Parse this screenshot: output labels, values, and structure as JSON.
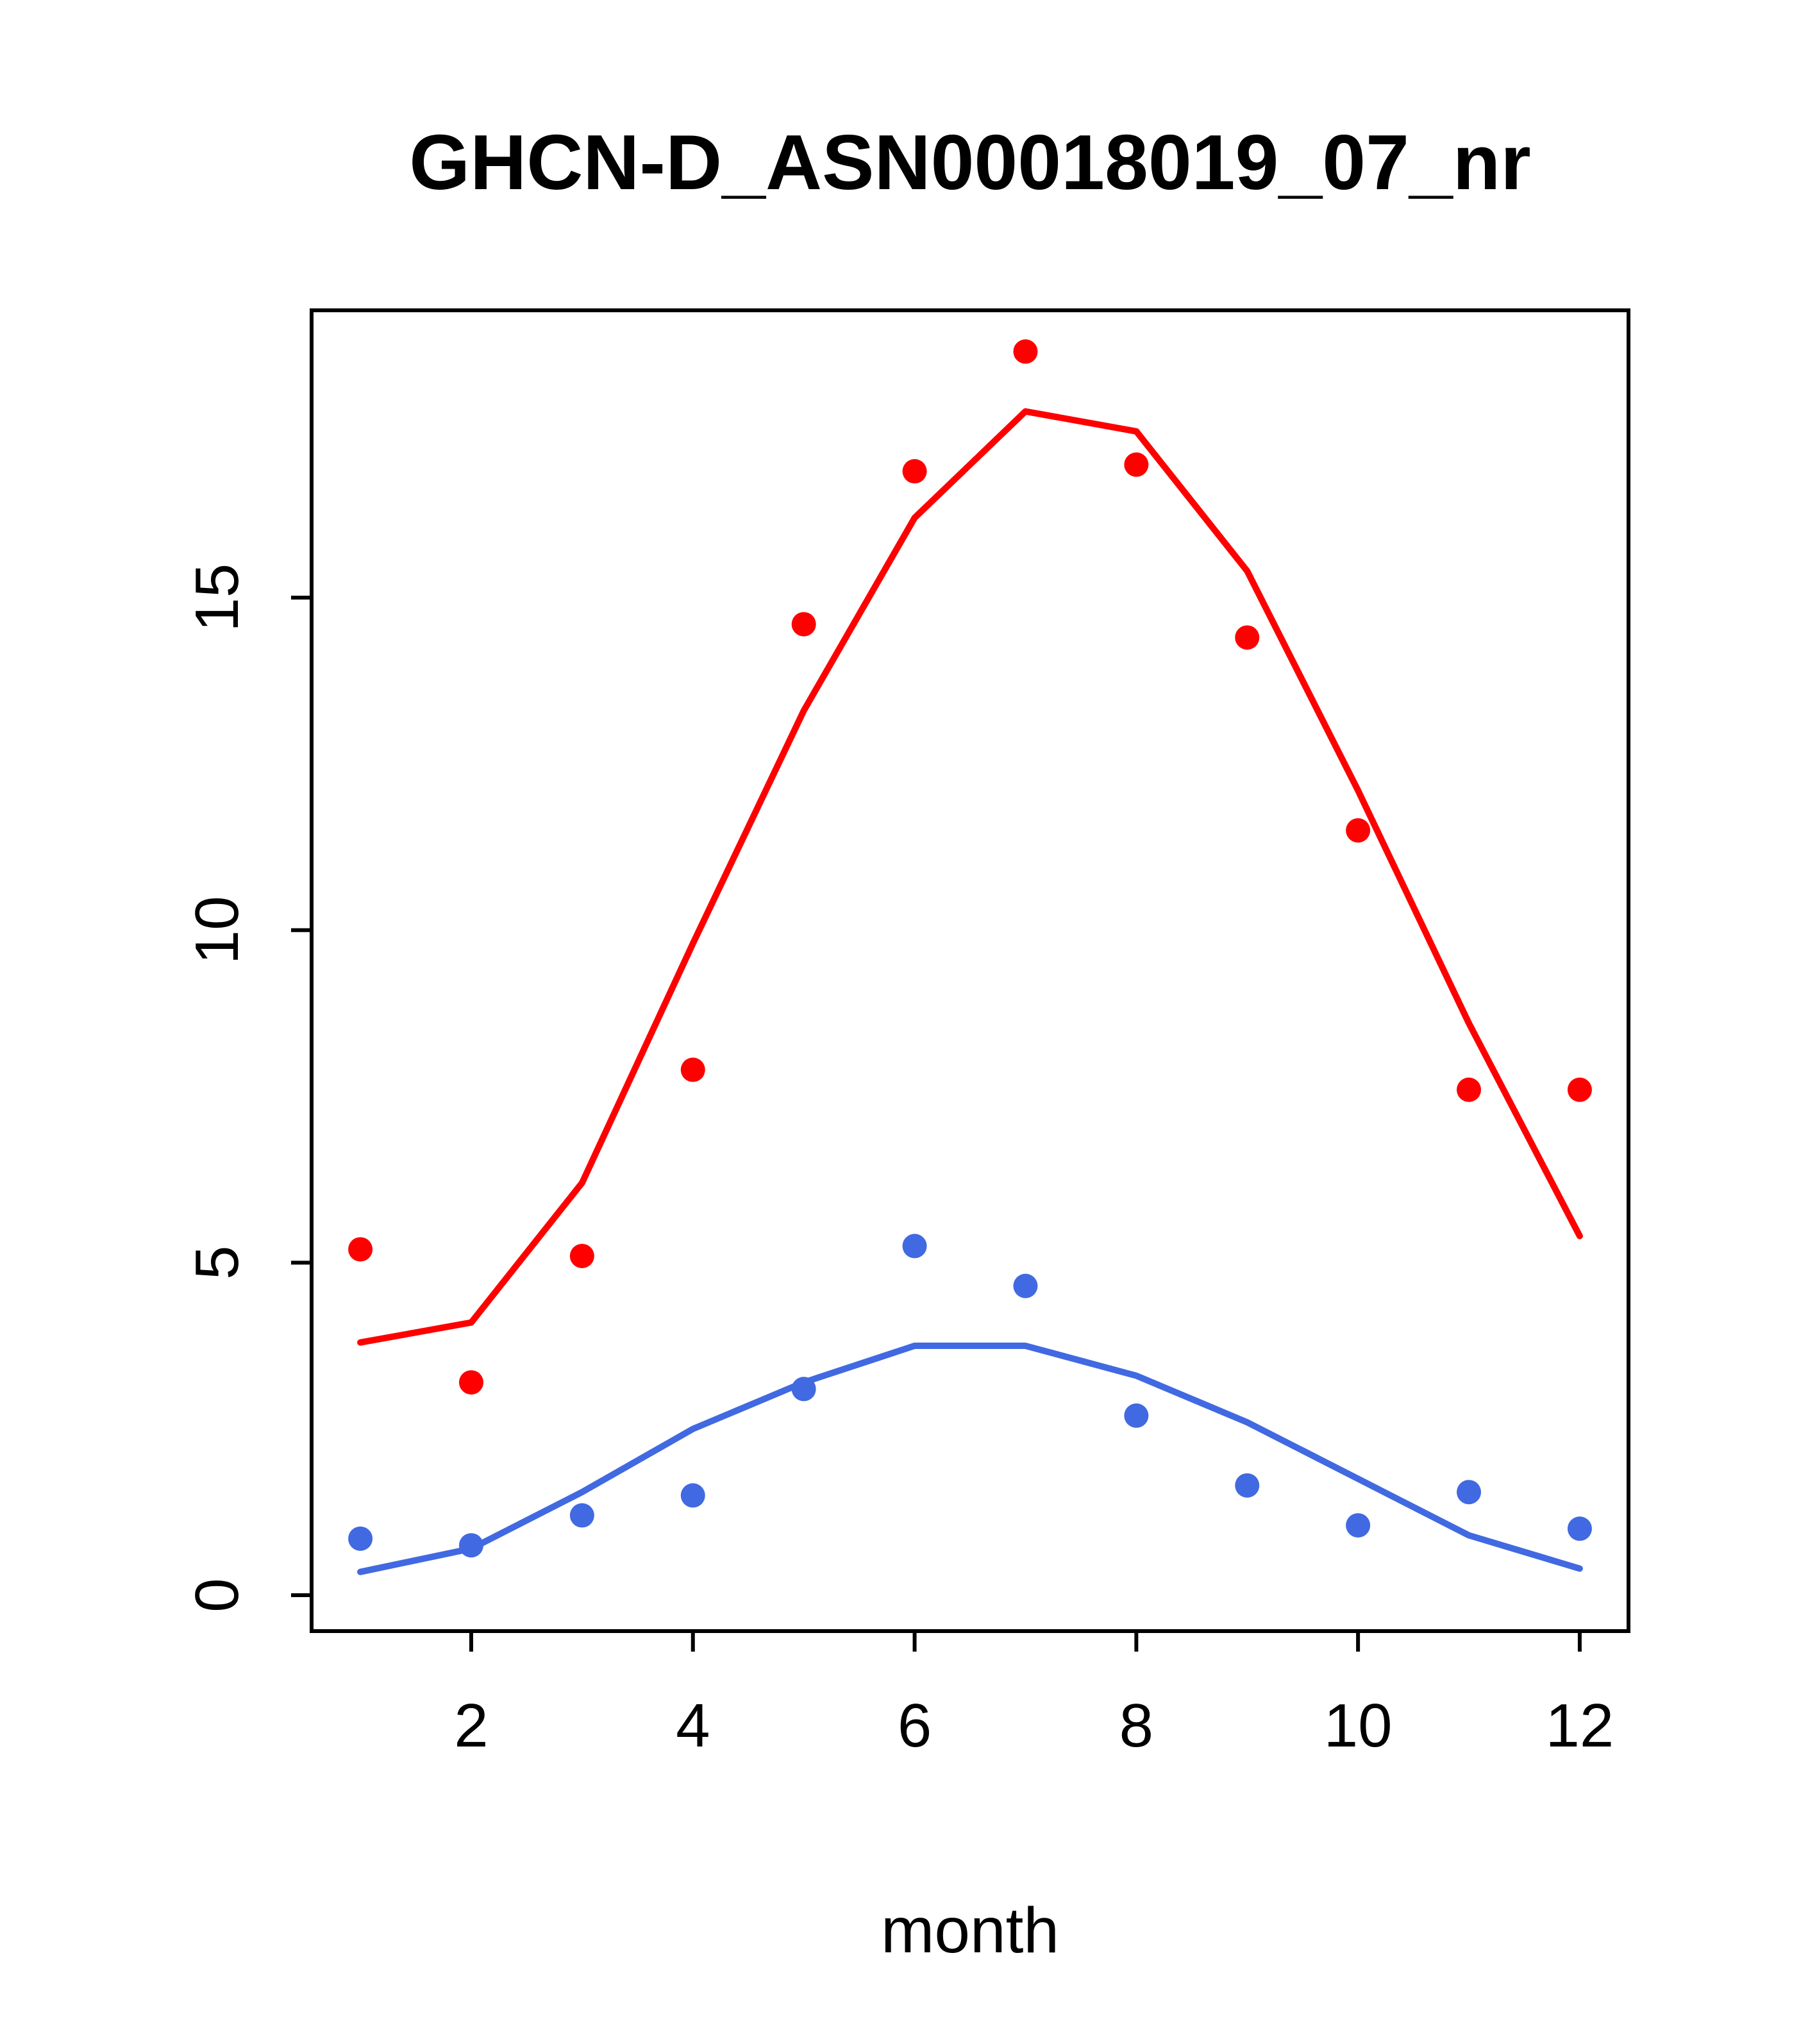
{
  "chart_data": {
    "type": "scatter",
    "title": "GHCN-D_ASN00018019_07_nr",
    "xlabel": "month",
    "ylabel": "",
    "x": [
      1,
      2,
      3,
      4,
      5,
      6,
      7,
      8,
      9,
      10,
      11,
      12
    ],
    "xlim": [
      0.56,
      12.44
    ],
    "ylim": [
      -0.54,
      19.32
    ],
    "xticks": [
      2,
      4,
      6,
      8,
      10,
      12
    ],
    "yticks": [
      0,
      5,
      10,
      15
    ],
    "grid": false,
    "legend": false,
    "colors": {
      "red": "#FF0000",
      "blue": "#4169E1",
      "axis": "#000000"
    },
    "series": [
      {
        "name": "red-line",
        "kind": "line",
        "color": "#FF0000",
        "values": [
          3.8,
          4.1,
          6.2,
          9.8,
          13.3,
          16.2,
          17.8,
          17.5,
          15.4,
          12.1,
          8.6,
          5.4
        ]
      },
      {
        "name": "blue-line",
        "kind": "line",
        "color": "#4169E1",
        "values": [
          0.35,
          0.7,
          1.55,
          2.5,
          3.2,
          3.75,
          3.75,
          3.3,
          2.6,
          1.75,
          0.9,
          0.4
        ]
      },
      {
        "name": "red-points",
        "kind": "points",
        "color": "#FF0000",
        "values": [
          5.2,
          3.2,
          5.1,
          7.9,
          14.6,
          16.9,
          18.7,
          17.0,
          14.4,
          11.5,
          7.6,
          7.6
        ]
      },
      {
        "name": "blue-points",
        "kind": "points",
        "color": "#4169E1",
        "values": [
          0.85,
          0.75,
          1.2,
          1.5,
          3.1,
          5.25,
          4.65,
          2.7,
          1.65,
          1.05,
          1.55,
          1.0
        ]
      }
    ]
  }
}
